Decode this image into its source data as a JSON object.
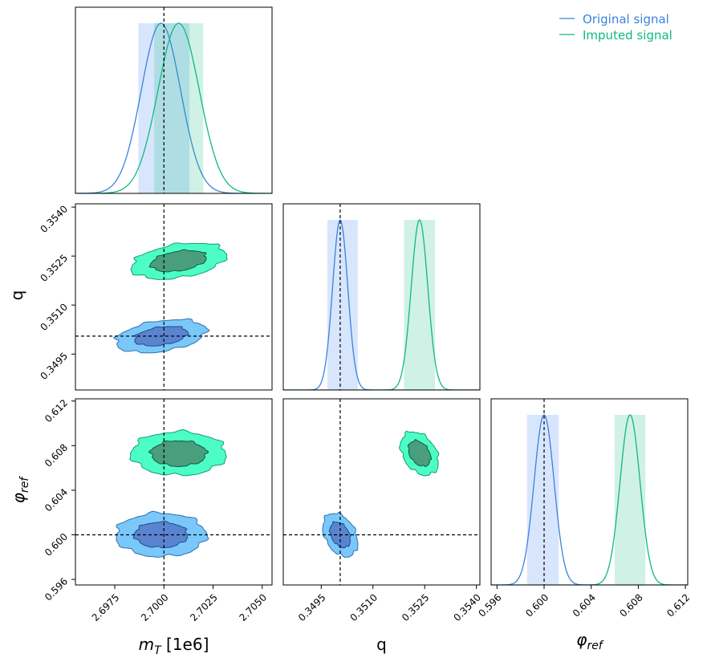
{
  "chart_data": {
    "type": "corner",
    "parameters": [
      {
        "key": "mT",
        "label_main": "m",
        "label_sub": "T",
        "label_suffix": " [1e6]",
        "range": [
          2.6955,
          2.7055
        ],
        "ticks": [
          "2.6975",
          "2.7000",
          "2.7025",
          "2.7050"
        ],
        "truth": 2.7
      },
      {
        "key": "q",
        "label_main": "q",
        "range": [
          0.3484,
          0.3541
        ],
        "ticks": [
          "0.3495",
          "0.3510",
          "0.3525",
          "0.3540"
        ],
        "truth": 0.35005
      },
      {
        "key": "phi",
        "label_main": "φ",
        "label_sub": "ref",
        "range": [
          0.5955,
          0.6122
        ],
        "ticks": [
          "0.596",
          "0.600",
          "0.604",
          "0.608",
          "0.612"
        ],
        "truth": 0.6
      }
    ],
    "legend": {
      "position": "top-right",
      "entries": [
        "Original signal",
        "Imputed signal"
      ]
    },
    "series": [
      {
        "name": "Original signal",
        "color": "#3b82e0",
        "fill": "#7ac8fa",
        "inner_fill": "#5b84d0",
        "means": [
          2.69985,
          0.35005,
          0.6
        ],
        "sds": [
          0.001,
          0.00022,
          0.00085
        ],
        "corr": {
          "mT_q": 0.35,
          "mT_phi": 0.0,
          "q_phi": -0.35
        },
        "interval_1d": [
          [
            2.6987,
            2.7013
          ],
          [
            0.34968,
            0.35056
          ],
          [
            0.59855,
            0.60125
          ]
        ]
      },
      {
        "name": "Imputed signal",
        "color": "#10b981",
        "fill": "#4dfdc6",
        "inner_fill": "#4a9e7d",
        "means": [
          2.70075,
          0.35235,
          0.6073
        ],
        "sds": [
          0.00105,
          0.00024,
          0.00085
        ],
        "corr": {
          "mT_q": 0.35,
          "mT_phi": 0.0,
          "q_phi": -0.35
        },
        "interval_1d": [
          [
            2.6995,
            2.702
          ],
          [
            0.3519,
            0.3528
          ],
          [
            0.606,
            0.6086
          ]
        ]
      }
    ]
  }
}
